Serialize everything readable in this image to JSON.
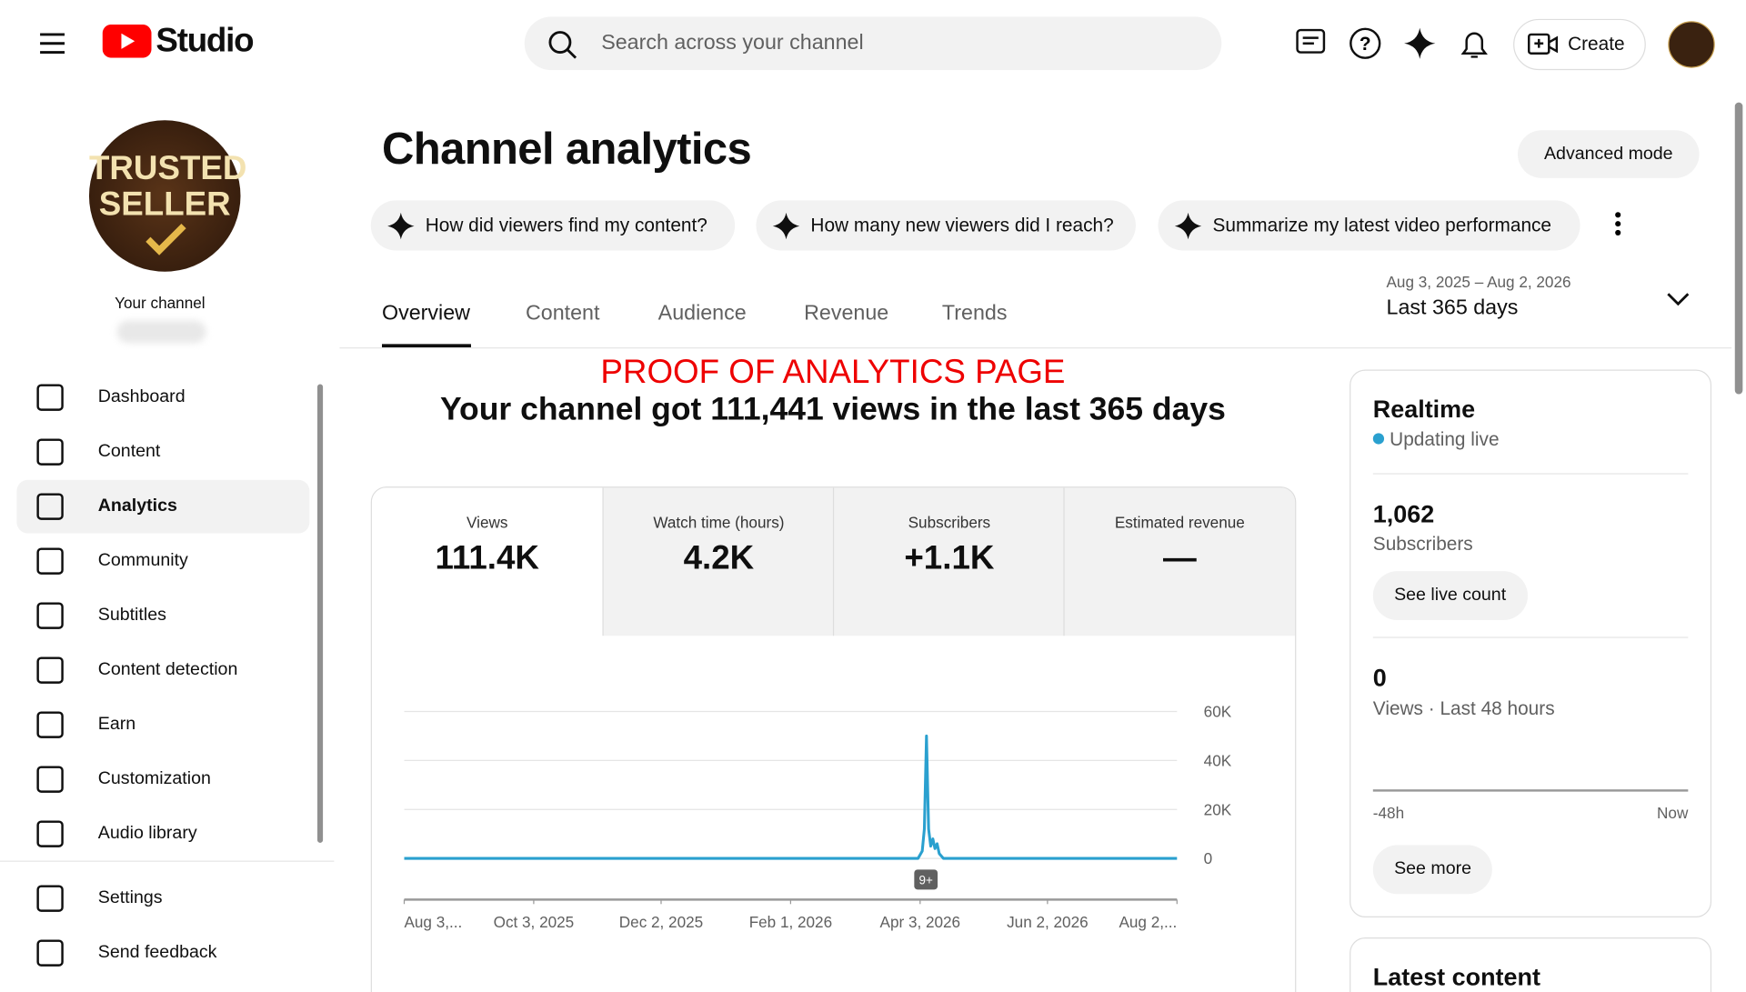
{
  "header": {
    "logo": "Studio",
    "search": "Search across your channel",
    "create": "Create"
  },
  "sidebar": {
    "avatar_text": [
      "TRUSTED",
      "SELLER"
    ],
    "channel": "Your channel",
    "nav": [
      "Dashboard",
      "Content",
      "Analytics",
      "Community",
      "Subtitles",
      "Content detection",
      "Earn",
      "Customization",
      "Audio library"
    ],
    "footer": [
      "Settings",
      "Send feedback"
    ]
  },
  "main": {
    "title": "Channel analytics",
    "advanced": "Advanced mode",
    "prompts": [
      "How did viewers find my content?",
      "How many new viewers did I reach?",
      "Summarize my latest video performance"
    ],
    "date_range": {
      "range": "Aug 3, 2025 – Aug 2, 2026",
      "label": "Last 365 days"
    },
    "tabs": [
      "Overview",
      "Content",
      "Audience",
      "Revenue",
      "Trends"
    ],
    "proof": "PROOF OF ANALYTICS PAGE",
    "headline": "Your channel got 111,441 views in the last 365 days",
    "metrics": [
      {
        "label": "Views",
        "value": "111.4K"
      },
      {
        "label": "Watch time (hours)",
        "value": "4.2K"
      },
      {
        "label": "Subscribers",
        "value": "+1.1K"
      },
      {
        "label": "Estimated revenue",
        "value": "—"
      }
    ]
  },
  "chart": {
    "type": "line",
    "color": "#2aa0cf",
    "x": [
      "2025-08-03",
      "2026-04-02",
      "2026-04-04",
      "2026-04-05",
      "2026-04-06",
      "2026-04-07",
      "2026-04-08",
      "2026-04-09",
      "2026-04-10",
      "2026-04-11",
      "2026-04-12",
      "2026-04-14",
      "2026-08-02"
    ],
    "values": [
      0,
      0,
      3000,
      12000,
      50000,
      12000,
      5000,
      8000,
      4000,
      6000,
      2000,
      0,
      0
    ],
    "xlim": [
      "2025-08-03",
      "2026-08-02"
    ],
    "xticks": [
      {
        "value": "2025-08-03",
        "label": "Aug 3,..."
      },
      {
        "value": "2025-10-03",
        "label": "Oct 3, 2025"
      },
      {
        "value": "2025-12-02",
        "label": "Dec 2, 2025"
      },
      {
        "value": "2026-02-01",
        "label": "Feb 1, 2026"
      },
      {
        "value": "2026-04-03",
        "label": "Apr 3, 2026"
      },
      {
        "value": "2026-06-02",
        "label": "Jun 2, 2026"
      },
      {
        "value": "2026-08-02",
        "label": "Aug 2,..."
      }
    ],
    "ylim": [
      0,
      60000
    ],
    "yticks": [
      {
        "value": 0,
        "label": "0"
      },
      {
        "value": 20000,
        "label": "20K"
      },
      {
        "value": 40000,
        "label": "40K"
      },
      {
        "value": 60000,
        "label": "60K"
      }
    ],
    "grid": true,
    "badge": "9+"
  },
  "realtime": {
    "title": "Realtime",
    "status": "Updating live",
    "subs_value": "1,062",
    "subs_label": "Subscribers",
    "live_button": "See live count",
    "views_value": "0",
    "views_label": "Views · Last 48 hours",
    "axis_start": "-48h",
    "axis_end": "Now",
    "more_button": "See more"
  },
  "latest": {
    "title": "Latest content"
  }
}
